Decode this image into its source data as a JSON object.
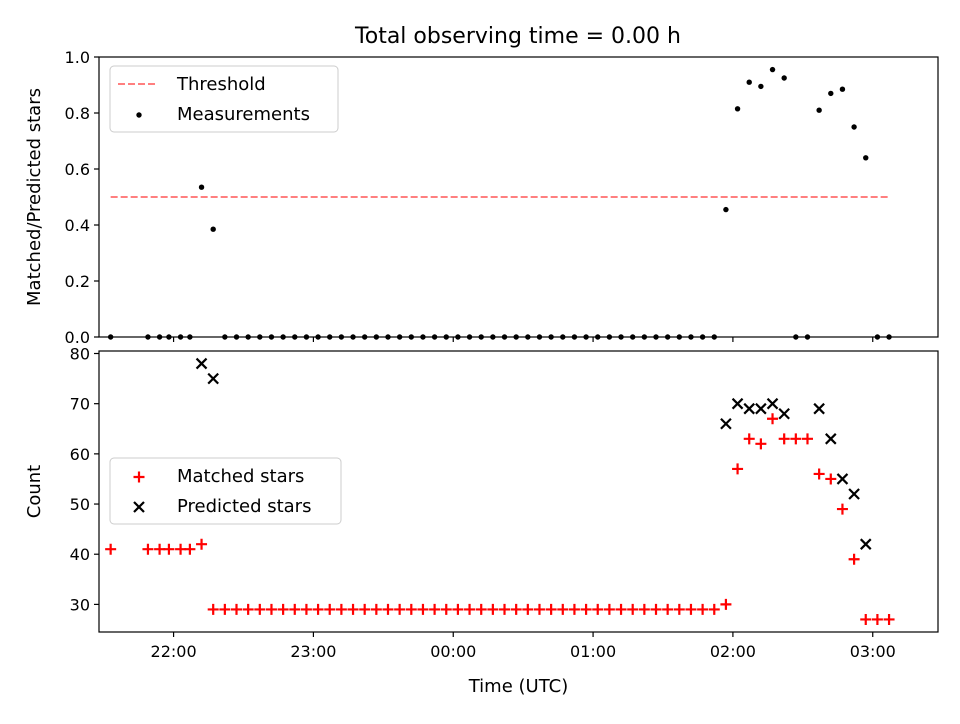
{
  "figure": {
    "title": "Total observing time = 0.00 h"
  },
  "chart_data": [
    {
      "type": "scatter",
      "xlabel": "",
      "ylabel": "Matched/Predicted stars",
      "xlim": [
        "21:28",
        "03:28"
      ],
      "ylim": [
        0,
        1.0
      ],
      "x_ticks": [
        "22:00",
        "23:00",
        "00:00",
        "01:00",
        "02:00",
        "03:00"
      ],
      "y_ticks": [
        "0.0",
        "0.2",
        "0.4",
        "0.6",
        "0.8",
        "1.0"
      ],
      "legend": {
        "placement": "top-left"
      },
      "threshold": {
        "name": "Threshold",
        "value": 0.5,
        "x_from": "21:33",
        "x_to": "03:07",
        "color": "#ff7f7f",
        "style": "dashed"
      },
      "series": [
        {
          "name": "Measurements",
          "color": "#000000",
          "marker": "dot",
          "points": [
            [
              "21:33",
              0.0
            ],
            [
              "21:49",
              0.0
            ],
            [
              "21:54",
              0.0
            ],
            [
              "21:58",
              0.0
            ],
            [
              "22:03",
              0.0
            ],
            [
              "22:07",
              0.0
            ],
            [
              "22:12",
              0.535
            ],
            [
              "22:17",
              0.385
            ],
            [
              "22:22",
              0.0
            ],
            [
              "22:27",
              0.0
            ],
            [
              "22:32",
              0.0
            ],
            [
              "22:37",
              0.0
            ],
            [
              "22:42",
              0.0
            ],
            [
              "22:47",
              0.0
            ],
            [
              "22:52",
              0.0
            ],
            [
              "22:57",
              0.0
            ],
            [
              "23:02",
              0.0
            ],
            [
              "23:07",
              0.0
            ],
            [
              "23:12",
              0.0
            ],
            [
              "23:17",
              0.0
            ],
            [
              "23:22",
              0.0
            ],
            [
              "23:27",
              0.0
            ],
            [
              "23:32",
              0.0
            ],
            [
              "23:37",
              0.0
            ],
            [
              "23:42",
              0.0
            ],
            [
              "23:47",
              0.0
            ],
            [
              "23:52",
              0.0
            ],
            [
              "23:57",
              0.0
            ],
            [
              "00:02",
              0.0
            ],
            [
              "00:07",
              0.0
            ],
            [
              "00:12",
              0.0
            ],
            [
              "00:17",
              0.0
            ],
            [
              "00:22",
              0.0
            ],
            [
              "00:27",
              0.0
            ],
            [
              "00:32",
              0.0
            ],
            [
              "00:37",
              0.0
            ],
            [
              "00:42",
              0.0
            ],
            [
              "00:47",
              0.0
            ],
            [
              "00:52",
              0.0
            ],
            [
              "00:57",
              0.0
            ],
            [
              "01:02",
              0.0
            ],
            [
              "01:07",
              0.0
            ],
            [
              "01:12",
              0.0
            ],
            [
              "01:17",
              0.0
            ],
            [
              "01:22",
              0.0
            ],
            [
              "01:27",
              0.0
            ],
            [
              "01:32",
              0.0
            ],
            [
              "01:37",
              0.0
            ],
            [
              "01:42",
              0.0
            ],
            [
              "01:47",
              0.0
            ],
            [
              "01:52",
              0.0
            ],
            [
              "01:57",
              0.455
            ],
            [
              "02:02",
              0.815
            ],
            [
              "02:07",
              0.91
            ],
            [
              "02:12",
              0.895
            ],
            [
              "02:17",
              0.955
            ],
            [
              "02:22",
              0.925
            ],
            [
              "02:27",
              0.0
            ],
            [
              "02:32",
              0.0
            ],
            [
              "02:37",
              0.81
            ],
            [
              "02:42",
              0.87
            ],
            [
              "02:47",
              0.885
            ],
            [
              "02:52",
              0.75
            ],
            [
              "02:57",
              0.64
            ],
            [
              "03:02",
              0.0
            ],
            [
              "03:07",
              0.0
            ]
          ]
        }
      ]
    },
    {
      "type": "scatter",
      "xlabel": "Time (UTC)",
      "ylabel": "Count",
      "xlim": [
        "21:28",
        "03:28"
      ],
      "ylim": [
        24.5,
        80.5
      ],
      "x_ticks": [
        "22:00",
        "23:00",
        "00:00",
        "01:00",
        "02:00",
        "03:00"
      ],
      "y_ticks": [
        "30",
        "40",
        "50",
        "60",
        "70",
        "80"
      ],
      "legend": {
        "placement": "center-left"
      },
      "series": [
        {
          "name": "Matched stars",
          "color": "#ff0000",
          "marker": "plus",
          "points": [
            [
              "21:33",
              41
            ],
            [
              "21:49",
              41
            ],
            [
              "21:54",
              41
            ],
            [
              "21:58",
              41
            ],
            [
              "22:03",
              41
            ],
            [
              "22:07",
              41
            ],
            [
              "22:12",
              42
            ],
            [
              "22:17",
              29
            ],
            [
              "22:22",
              29
            ],
            [
              "22:27",
              29
            ],
            [
              "22:32",
              29
            ],
            [
              "22:37",
              29
            ],
            [
              "22:42",
              29
            ],
            [
              "22:47",
              29
            ],
            [
              "22:52",
              29
            ],
            [
              "22:57",
              29
            ],
            [
              "23:02",
              29
            ],
            [
              "23:07",
              29
            ],
            [
              "23:12",
              29
            ],
            [
              "23:17",
              29
            ],
            [
              "23:22",
              29
            ],
            [
              "23:27",
              29
            ],
            [
              "23:32",
              29
            ],
            [
              "23:37",
              29
            ],
            [
              "23:42",
              29
            ],
            [
              "23:47",
              29
            ],
            [
              "23:52",
              29
            ],
            [
              "23:57",
              29
            ],
            [
              "00:02",
              29
            ],
            [
              "00:07",
              29
            ],
            [
              "00:12",
              29
            ],
            [
              "00:17",
              29
            ],
            [
              "00:22",
              29
            ],
            [
              "00:27",
              29
            ],
            [
              "00:32",
              29
            ],
            [
              "00:37",
              29
            ],
            [
              "00:42",
              29
            ],
            [
              "00:47",
              29
            ],
            [
              "00:52",
              29
            ],
            [
              "00:57",
              29
            ],
            [
              "01:02",
              29
            ],
            [
              "01:07",
              29
            ],
            [
              "01:12",
              29
            ],
            [
              "01:17",
              29
            ],
            [
              "01:22",
              29
            ],
            [
              "01:27",
              29
            ],
            [
              "01:32",
              29
            ],
            [
              "01:37",
              29
            ],
            [
              "01:42",
              29
            ],
            [
              "01:47",
              29
            ],
            [
              "01:52",
              29
            ],
            [
              "01:57",
              30
            ],
            [
              "02:02",
              57
            ],
            [
              "02:07",
              63
            ],
            [
              "02:12",
              62
            ],
            [
              "02:17",
              67
            ],
            [
              "02:22",
              63
            ],
            [
              "02:27",
              63
            ],
            [
              "02:32",
              63
            ],
            [
              "02:37",
              56
            ],
            [
              "02:42",
              55
            ],
            [
              "02:47",
              49
            ],
            [
              "02:52",
              39
            ],
            [
              "02:57",
              27
            ],
            [
              "03:02",
              27
            ],
            [
              "03:07",
              27
            ]
          ]
        },
        {
          "name": "Predicted stars",
          "color": "#000000",
          "marker": "x",
          "points": [
            [
              "22:12",
              78
            ],
            [
              "22:17",
              75
            ],
            [
              "01:57",
              66
            ],
            [
              "02:02",
              70
            ],
            [
              "02:07",
              69
            ],
            [
              "02:12",
              69
            ],
            [
              "02:17",
              70
            ],
            [
              "02:22",
              68
            ],
            [
              "02:37",
              69
            ],
            [
              "02:42",
              63
            ],
            [
              "02:47",
              55
            ],
            [
              "02:52",
              52
            ],
            [
              "02:57",
              42
            ]
          ]
        }
      ]
    }
  ]
}
